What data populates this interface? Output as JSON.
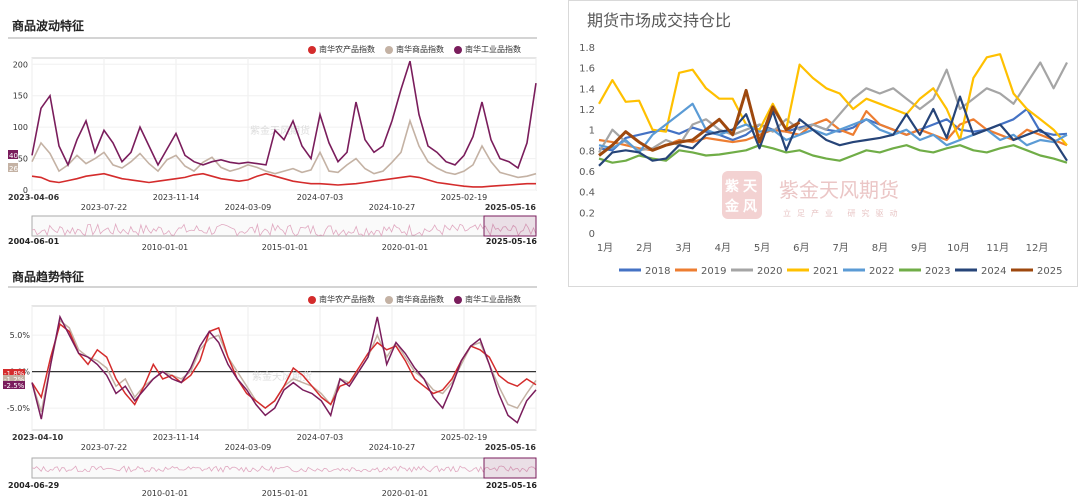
{
  "left_top": {
    "title": "商品波动特征",
    "legend": [
      {
        "label": "南华农产品指数",
        "color": "#d42c2c"
      },
      {
        "label": "南华商品指数",
        "color": "#c4b2a4"
      },
      {
        "label": "南华工业品指数",
        "color": "#7a1d5c"
      }
    ],
    "ylim": [
      0,
      210
    ],
    "y_ticks": [
      "0",
      "50",
      "100",
      "150",
      "200"
    ],
    "x_ticks": [
      "2023-04-06",
      "2023-07-22",
      "2023-11-14",
      "2024-03-09",
      "2024-07-03",
      "2024-10-27",
      "2025-02-19",
      "2025-05-16"
    ],
    "end_labels": [
      "40",
      "26"
    ],
    "watermark": "紫金天风期货",
    "nav_start": "2004-06-01",
    "nav_end": "2025-05-16",
    "nav_ticks": [
      "2010-01-01",
      "2015-01-01",
      "2020-01-01"
    ]
  },
  "left_bottom": {
    "title": "商品趋势特征",
    "legend": [
      {
        "label": "南华农产品指数",
        "color": "#d42c2c"
      },
      {
        "label": "南华商品指数",
        "color": "#c4b2a4"
      },
      {
        "label": "南华工业品指数",
        "color": "#7a1d5c"
      }
    ],
    "ylim": [
      -8,
      9
    ],
    "y_ticks": [
      "-5.0%",
      "0.0%",
      "5.0%"
    ],
    "end_labels": [
      "-1.8%",
      "-1.2%",
      "-2.5%"
    ],
    "x_ticks": [
      "2023-04-10",
      "2023-07-22",
      "2023-11-14",
      "2024-03-09",
      "2024-07-03",
      "2024-10-27",
      "2025-02-19",
      "2025-05-16"
    ],
    "watermark": "紫金天风期货",
    "nav_start": "2004-06-29",
    "nav_end": "2025-05-16",
    "nav_ticks": [
      "2010-01-01",
      "2015-01-01",
      "2020-01-01"
    ]
  },
  "right": {
    "title": "期货市场成交持仓比",
    "watermark": "紫金天风期货",
    "watermark_sub": "立足产业 研究驱动",
    "logo_chars": "紫天金风"
  },
  "chart_data": [
    {
      "type": "line",
      "title": "商品波动特征",
      "x_start": "2023-04-06",
      "x_end": "2025-05-16",
      "ylim": [
        0,
        210
      ],
      "series": [
        {
          "name": "南华农产品指数",
          "color": "#d42c2c",
          "values": [
            22,
            20,
            14,
            12,
            15,
            18,
            22,
            24,
            26,
            22,
            18,
            16,
            14,
            12,
            14,
            16,
            18,
            20,
            24,
            26,
            22,
            18,
            16,
            14,
            16,
            22,
            26,
            22,
            18,
            14,
            12,
            10,
            10,
            9,
            8,
            9,
            10,
            12,
            14,
            16,
            18,
            20,
            22,
            20,
            16,
            12,
            10,
            8,
            6,
            5,
            5,
            6,
            7,
            8,
            9,
            10,
            10
          ]
        },
        {
          "name": "南华商品指数",
          "color": "#c4b2a4",
          "values": [
            45,
            75,
            58,
            30,
            40,
            55,
            42,
            50,
            60,
            40,
            35,
            45,
            58,
            42,
            30,
            48,
            55,
            38,
            30,
            44,
            52,
            36,
            30,
            34,
            40,
            36,
            30,
            26,
            30,
            34,
            28,
            32,
            60,
            30,
            28,
            40,
            50,
            34,
            26,
            30,
            44,
            60,
            110,
            70,
            45,
            35,
            28,
            25,
            30,
            40,
            70,
            45,
            28,
            24,
            20,
            22,
            26
          ]
        },
        {
          "name": "南华工业品指数",
          "color": "#7a1d5c",
          "values": [
            55,
            130,
            150,
            70,
            40,
            80,
            110,
            60,
            95,
            75,
            45,
            60,
            100,
            70,
            40,
            65,
            90,
            55,
            45,
            40,
            45,
            48,
            44,
            42,
            44,
            42,
            40,
            95,
            80,
            110,
            70,
            50,
            120,
            75,
            45,
            60,
            140,
            80,
            60,
            70,
            110,
            160,
            205,
            120,
            70,
            60,
            45,
            40,
            55,
            85,
            140,
            80,
            50,
            45,
            35,
            75,
            170
          ]
        }
      ]
    },
    {
      "type": "line",
      "title": "商品趋势特征",
      "x_start": "2023-04-10",
      "x_end": "2025-05-16",
      "ylim": [
        -8,
        9
      ],
      "yunit": "%",
      "series": [
        {
          "name": "南华农产品指数",
          "color": "#d42c2c",
          "values": [
            -1.5,
            -3.5,
            2.0,
            6.5,
            5.5,
            2.5,
            1.0,
            3.0,
            2.0,
            -1.0,
            -3.0,
            -4.5,
            -2.0,
            1.0,
            -1.0,
            -0.5,
            -1.5,
            -0.5,
            1.5,
            5.5,
            6.0,
            2.0,
            -1.0,
            -3.0,
            -4.0,
            -5.0,
            -4.0,
            -2.0,
            0.5,
            -0.5,
            -2.0,
            -3.5,
            -4.5,
            -2.0,
            -1.5,
            0.5,
            2.5,
            4.0,
            3.0,
            3.5,
            1.5,
            -1.0,
            -2.0,
            -3.0,
            -2.5,
            -1.0,
            1.5,
            3.5,
            3.0,
            2.0,
            -0.5,
            -1.5,
            -2.0,
            -1.0,
            -1.8
          ]
        },
        {
          "name": "南华商品指数",
          "color": "#c4b2a4",
          "values": [
            -1.5,
            -5.5,
            1.0,
            7.0,
            6.0,
            3.0,
            2.0,
            1.5,
            0.5,
            -2.0,
            -1.0,
            -3.5,
            -2.0,
            -1.0,
            0.0,
            -0.5,
            -1.0,
            0.0,
            3.0,
            4.5,
            5.0,
            2.0,
            0.0,
            -2.0,
            -4.0,
            -5.0,
            -4.0,
            -2.0,
            -1.0,
            -1.5,
            -2.0,
            -3.0,
            -4.5,
            -1.0,
            -1.5,
            0.0,
            2.0,
            5.0,
            2.0,
            4.0,
            2.0,
            0.0,
            -1.0,
            -2.5,
            -3.0,
            -1.5,
            1.0,
            3.5,
            4.0,
            1.0,
            -2.0,
            -4.5,
            -5.0,
            -3.0,
            -1.2
          ]
        },
        {
          "name": "南华工业品指数",
          "color": "#7a1d5c",
          "values": [
            -1.5,
            -6.5,
            1.0,
            7.5,
            5.0,
            2.5,
            2.0,
            1.0,
            -0.5,
            -3.0,
            -2.0,
            -4.0,
            -2.5,
            -1.0,
            0.0,
            -1.0,
            -1.5,
            0.5,
            3.5,
            5.5,
            4.0,
            1.0,
            -1.0,
            -2.5,
            -4.5,
            -6.0,
            -5.0,
            -2.5,
            -1.5,
            -2.5,
            -3.0,
            -4.0,
            -6.0,
            -1.0,
            -2.0,
            0.0,
            2.0,
            7.5,
            1.0,
            4.0,
            2.5,
            0.5,
            -1.0,
            -3.5,
            -5.0,
            -2.0,
            1.5,
            3.5,
            4.5,
            1.0,
            -3.0,
            -6.0,
            -7.0,
            -4.0,
            -2.5
          ]
        }
      ]
    },
    {
      "type": "line",
      "title": "期货市场成交持仓比",
      "x_ticks": [
        "1月",
        "2月",
        "3月",
        "4月",
        "5月",
        "6月",
        "7月",
        "8月",
        "9月",
        "10月",
        "11月",
        "12月"
      ],
      "y_ticks": [
        "0",
        "0.2",
        "0.4",
        "0.6",
        "0.8",
        "1",
        "1.2",
        "1.4",
        "1.6",
        "1.8"
      ],
      "ylim": [
        0,
        1.8
      ],
      "legend_position": "bottom",
      "series": [
        {
          "name": "2018",
          "color": "#4472c4",
          "values": [
            0.82,
            0.8,
            0.92,
            0.95,
            0.98,
            1.0,
            0.96,
            1.02,
            0.98,
            0.95,
            0.9,
            0.95,
            1.05,
            1.0,
            0.98,
            1.02,
            1.05,
            1.0,
            0.98,
            1.02,
            1.1,
            1.05,
            1.0,
            0.95,
            1.0,
            1.05,
            1.1,
            1.0,
            0.98,
            1.0,
            1.05,
            1.1,
            1.2,
            0.98,
            0.95,
            0.96
          ]
        },
        {
          "name": "2019",
          "color": "#ed7d31",
          "values": [
            0.9,
            0.88,
            0.85,
            0.82,
            0.8,
            0.85,
            0.9,
            0.88,
            0.92,
            0.9,
            0.88,
            0.9,
            0.95,
            1.0,
            0.98,
            0.95,
            1.05,
            1.1,
            1.0,
            0.95,
            1.18,
            1.05,
            1.0,
            0.95,
            1.0,
            0.95,
            0.9,
            1.05,
            1.1,
            1.0,
            0.95,
            0.9,
            1.0,
            0.95,
            0.9,
            0.85
          ]
        },
        {
          "name": "2020",
          "color": "#a5a5a5",
          "values": [
            0.78,
            1.0,
            0.88,
            0.8,
            0.82,
            0.9,
            0.85,
            1.05,
            1.1,
            1.0,
            0.95,
            1.0,
            1.05,
            0.98,
            1.1,
            1.0,
            1.05,
            1.0,
            1.15,
            1.3,
            1.4,
            1.35,
            1.4,
            1.3,
            1.2,
            1.3,
            1.58,
            1.2,
            1.3,
            1.4,
            1.35,
            1.25,
            1.45,
            1.65,
            1.4,
            1.65
          ]
        },
        {
          "name": "2021",
          "color": "#ffc000",
          "values": [
            1.25,
            1.48,
            1.27,
            1.28,
            1.0,
            0.98,
            1.55,
            1.58,
            1.4,
            1.3,
            1.3,
            1.05,
            1.0,
            1.25,
            1.0,
            1.63,
            1.5,
            1.4,
            1.35,
            1.2,
            1.3,
            1.25,
            1.2,
            1.15,
            1.3,
            1.4,
            1.2,
            0.9,
            1.5,
            1.7,
            1.73,
            1.35,
            1.2,
            1.1,
            1.0,
            0.85
          ]
        },
        {
          "name": "2022",
          "color": "#5b9bd5",
          "values": [
            0.85,
            0.82,
            0.9,
            0.78,
            0.95,
            1.05,
            1.15,
            1.25,
            1.0,
            0.95,
            1.0,
            1.05,
            0.98,
            1.0,
            0.9,
            0.95,
            1.0,
            0.95,
            1.0,
            1.05,
            1.1,
            1.0,
            0.95,
            1.0,
            0.9,
            0.95,
            0.85,
            0.9,
            0.95,
            1.0,
            0.9,
            0.95,
            0.85,
            0.9,
            0.88,
            0.95
          ]
        },
        {
          "name": "2023",
          "color": "#70ad47",
          "values": [
            0.72,
            0.68,
            0.7,
            0.75,
            0.72,
            0.7,
            0.8,
            0.78,
            0.75,
            0.76,
            0.78,
            0.8,
            0.85,
            0.82,
            0.78,
            0.8,
            0.75,
            0.72,
            0.7,
            0.75,
            0.8,
            0.78,
            0.82,
            0.85,
            0.8,
            0.78,
            0.82,
            0.85,
            0.8,
            0.78,
            0.82,
            0.85,
            0.8,
            0.75,
            0.72,
            0.68
          ]
        },
        {
          "name": "2024",
          "color": "#264478",
          "values": [
            0.65,
            0.78,
            0.8,
            0.78,
            0.7,
            0.72,
            0.85,
            0.82,
            0.95,
            0.98,
            1.0,
            1.15,
            0.82,
            1.18,
            0.8,
            1.1,
            1.0,
            0.9,
            0.85,
            0.88,
            0.9,
            0.92,
            0.95,
            1.15,
            0.95,
            1.2,
            0.92,
            1.32,
            0.95,
            1.0,
            1.05,
            0.9,
            0.95,
            1.0,
            0.9,
            0.7
          ]
        },
        {
          "name": "2025",
          "color": "#9e480e",
          "values": [
            0.75,
            0.85,
            0.98,
            0.88,
            0.8,
            0.85,
            0.88,
            0.9,
            1.0,
            1.1,
            0.95,
            1.38,
            0.88,
            1.22,
            1.0,
            1.07
          ]
        }
      ]
    }
  ]
}
